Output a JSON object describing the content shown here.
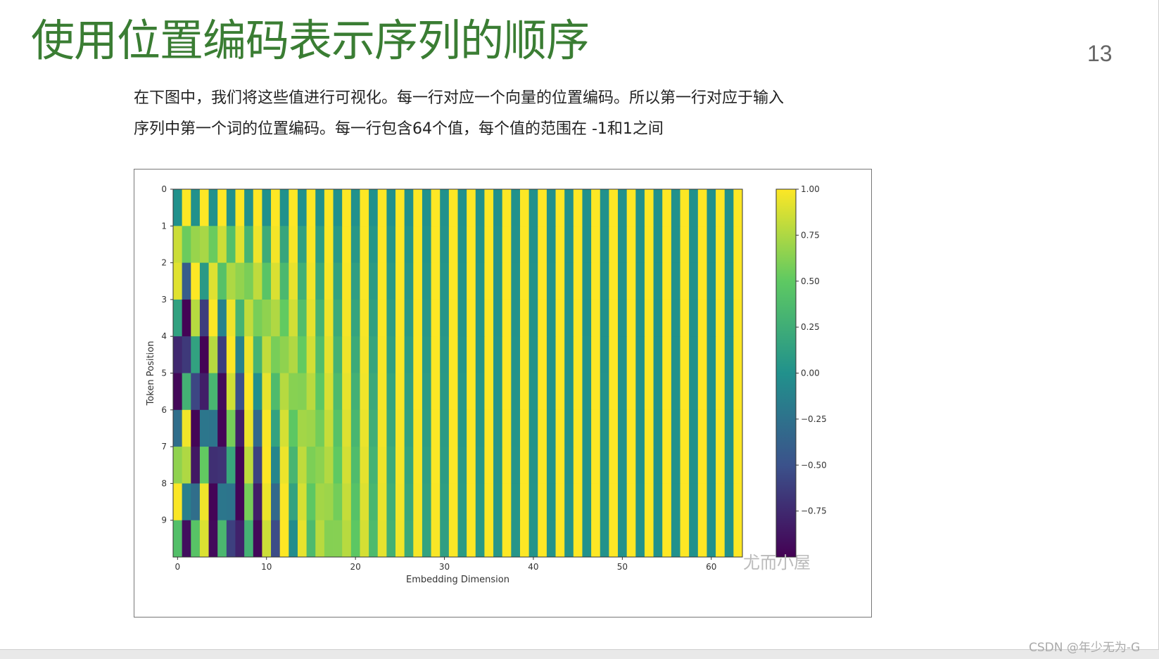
{
  "slide": {
    "title": "使用位置编码表示序列的顺序",
    "page_number": "13",
    "description_lines": [
      "在下图中，我们将这些值进行可视化。每一行对应一个向量的位置编码。所以第一行对应于输入",
      "序列中第一个词的位置编码。每一行包含64个值，每个值的范围在 -1和1之间"
    ]
  },
  "footer": {
    "watermark": "CSDN @年少无为-G"
  },
  "chart_overlay": {
    "watermark": "尤而小屋"
  },
  "chart_data": {
    "type": "heatmap",
    "title": "",
    "xlabel": "Embedding Dimension",
    "ylabel": "Token Position",
    "x_ticks": [
      0,
      10,
      20,
      30,
      40,
      50,
      60
    ],
    "y_ticks": [
      0,
      1,
      2,
      3,
      4,
      5,
      6,
      7,
      8,
      9
    ],
    "rows": 10,
    "cols": 64,
    "value_formula": "PE(pos,2i)=sin(pos/10000^(2i/64)), PE(pos,2i+1)=cos(pos/10000^(2i/64))",
    "colormap": "viridis",
    "vmin": -1,
    "vmax": 1,
    "colorbar_ticks": [
      "1.00",
      "0.75",
      "0.50",
      "0.25",
      "0.00",
      "−0.25",
      "−0.50",
      "−0.75"
    ],
    "colors": [
      "#440154",
      "#3b528b",
      "#21918c",
      "#5ec962",
      "#fde725"
    ]
  }
}
